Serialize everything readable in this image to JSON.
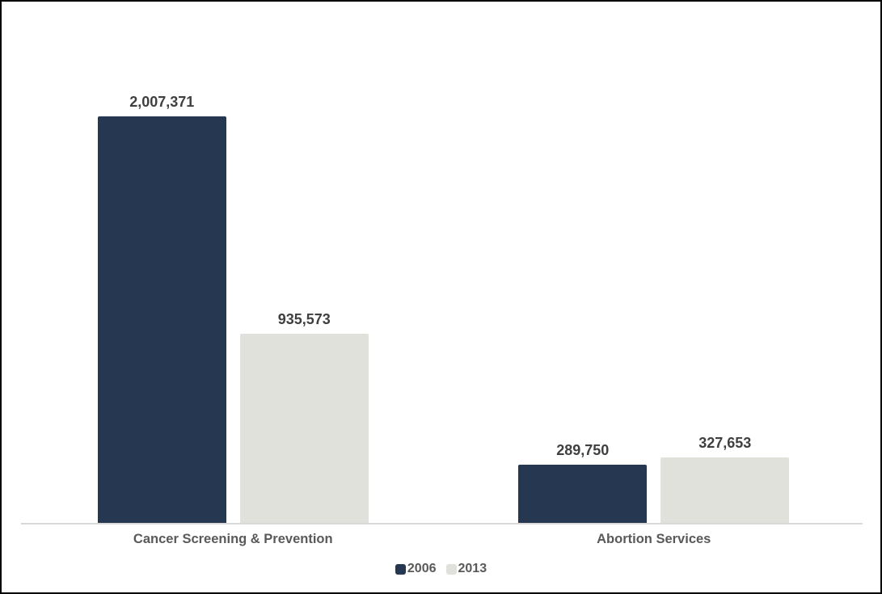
{
  "frame": {
    "background_color": "#ffffff",
    "border_color": "#000000"
  },
  "chart_data": {
    "type": "bar",
    "title": "",
    "xlabel": "",
    "ylabel": "",
    "categories": [
      "Cancer Screening & Prevention",
      "Abortion Services"
    ],
    "series": [
      {
        "name": "2006",
        "color": "#253751",
        "values": [
          2007371,
          289750
        ]
      },
      {
        "name": "2013",
        "color": "#e1e1db",
        "values": [
          935573,
          327653
        ]
      }
    ],
    "value_labels": [
      [
        "2,007,371",
        "289,750"
      ],
      [
        "935,573",
        "327,653"
      ]
    ],
    "ylim": [
      0,
      2007371
    ],
    "grid": false,
    "y_axis_visible": false,
    "legend_position": "bottom",
    "axis_line_color": "#d9d9d9",
    "value_label_color": "#3f3f3f",
    "category_label_color": "#595959",
    "legend_text_color": "#595959"
  }
}
